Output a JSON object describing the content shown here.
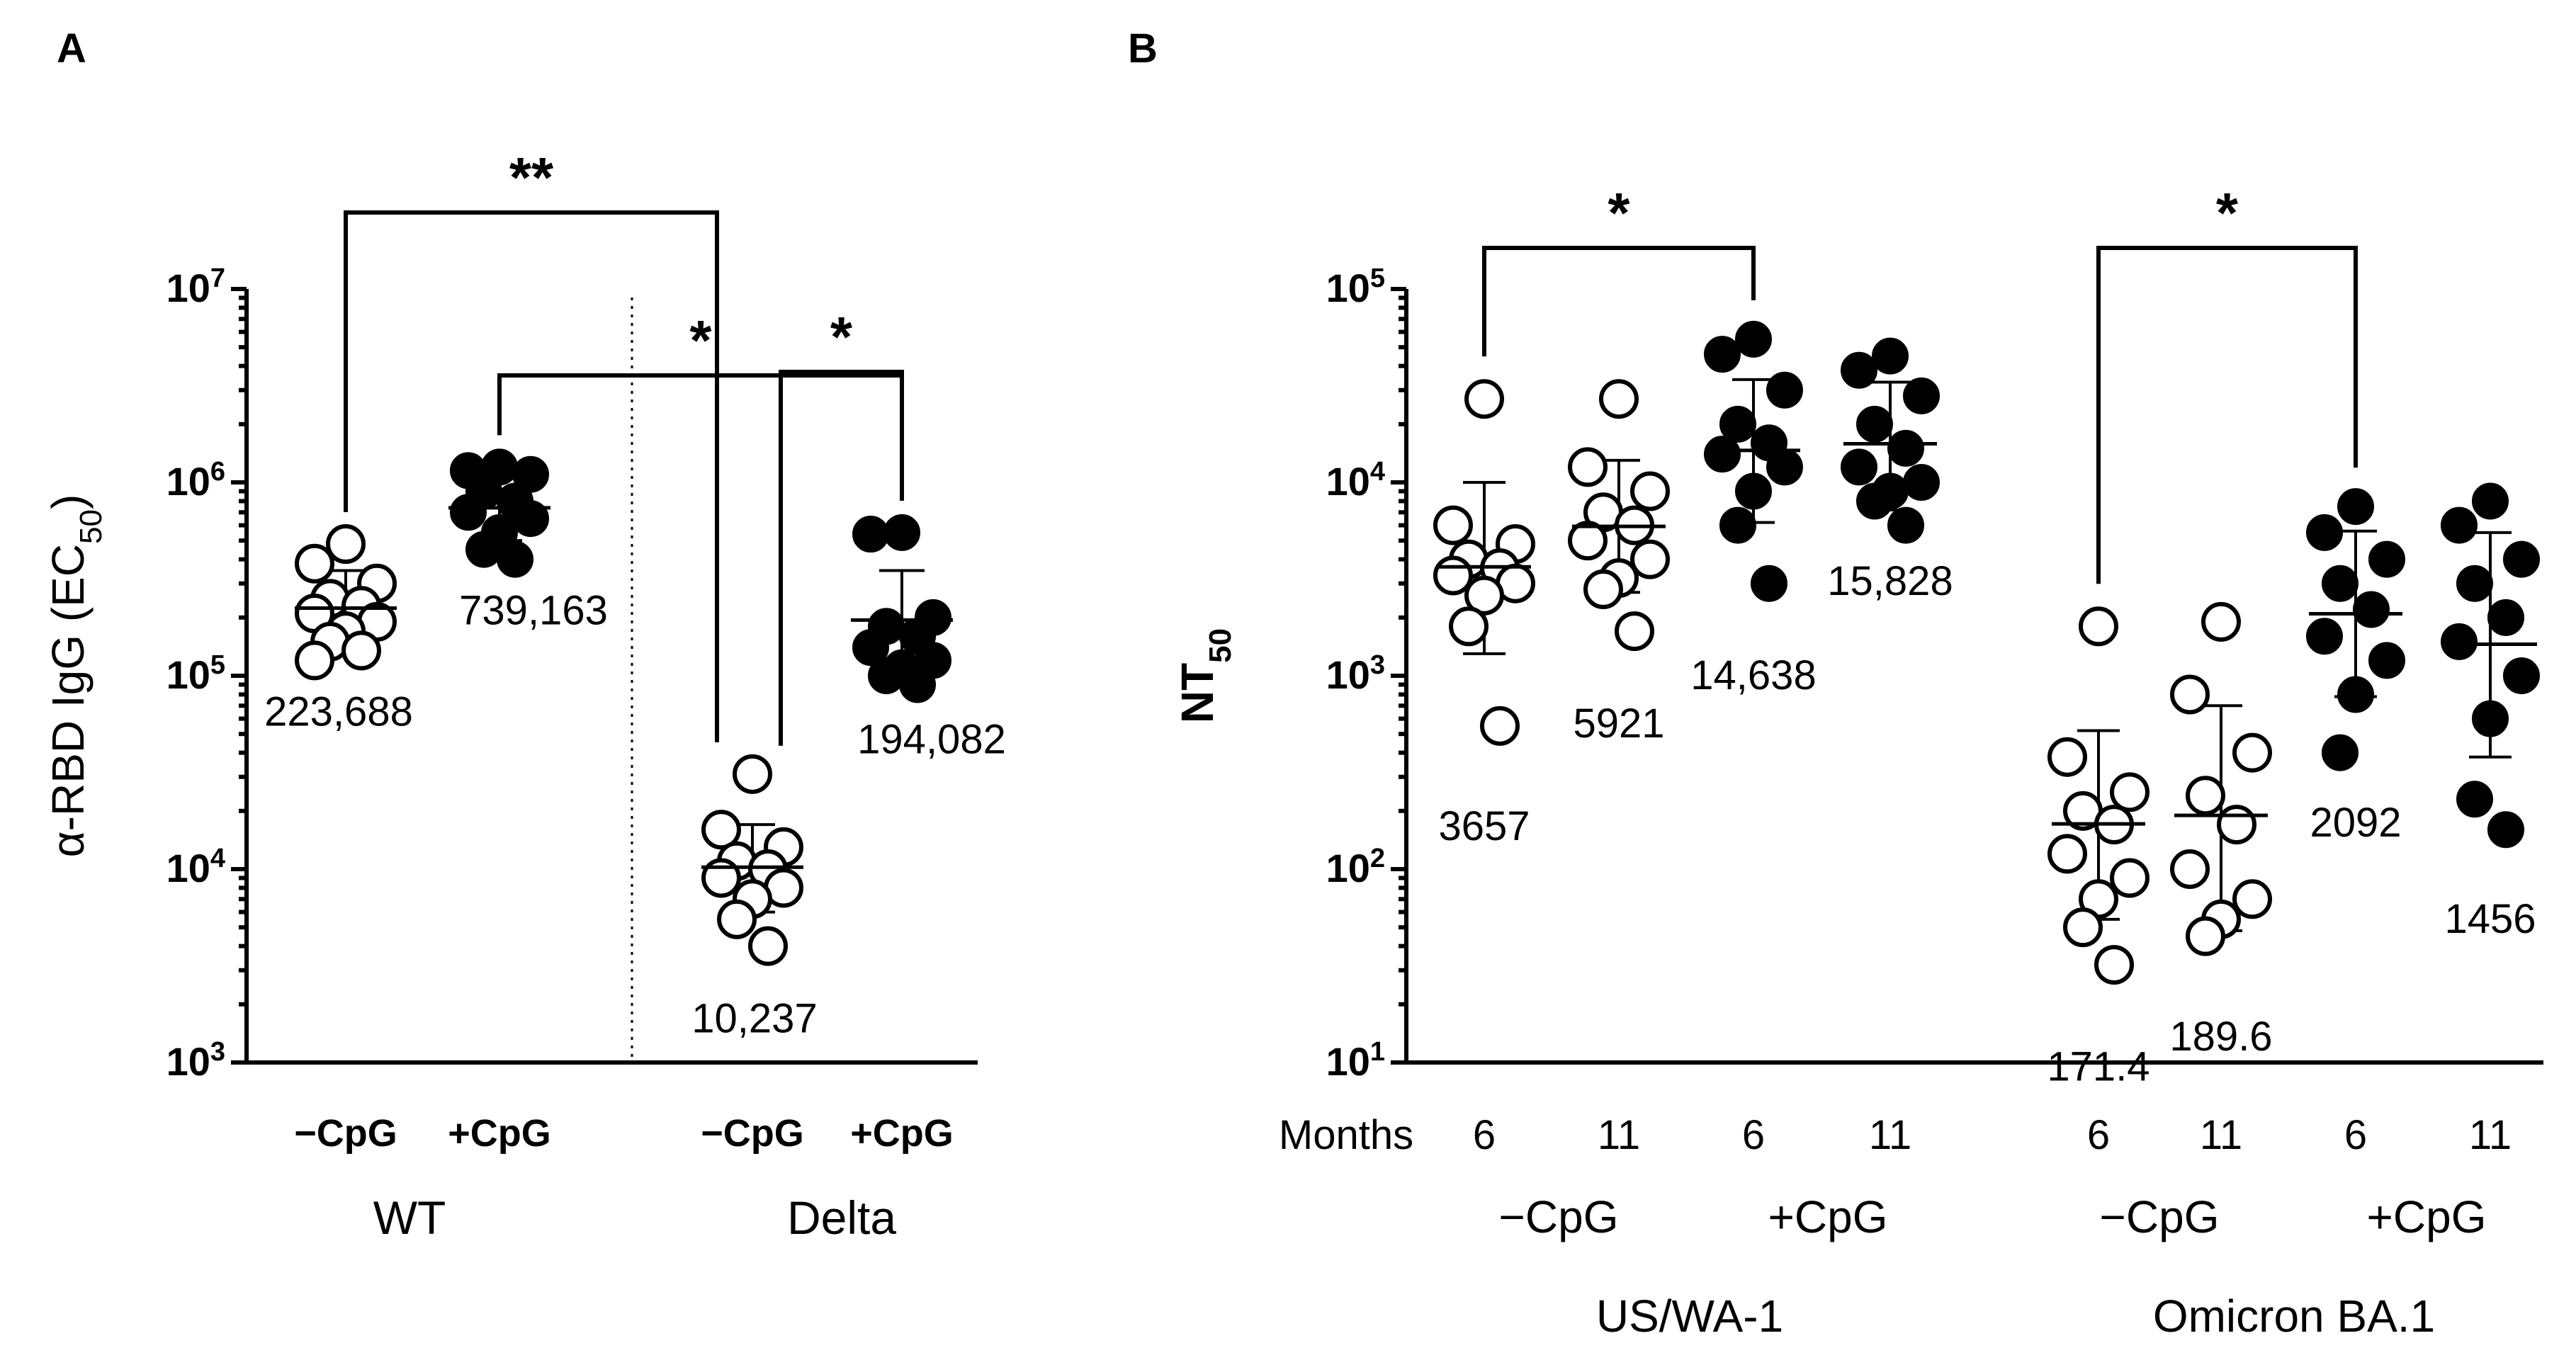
{
  "chart_data": [
    {
      "panel": "A",
      "type": "scatter",
      "yscale": "log",
      "ylabel_prefix": "α-RBD IgG (EC",
      "ylabel_sub": "50",
      "ylabel_suffix": ")",
      "ylim": [
        1000,
        10000000
      ],
      "yticks": [
        {
          "base": "10",
          "exp": "3",
          "value": 1000
        },
        {
          "base": "10",
          "exp": "4",
          "value": 10000
        },
        {
          "base": "10",
          "exp": "5",
          "value": 100000
        },
        {
          "base": "10",
          "exp": "6",
          "value": 1000000
        },
        {
          "base": "10",
          "exp": "7",
          "value": 10000000
        }
      ],
      "divider": true,
      "group_labels": [
        "WT",
        "Delta"
      ],
      "groups": [
        {
          "id": "wt-minus",
          "label": "−CpG",
          "variant": "WT",
          "filled": false,
          "mean": 223688,
          "mean_label": "223,688",
          "sd_high": 350000,
          "sd_low": 145000,
          "values": [
            480000,
            380000,
            300000,
            250000,
            230000,
            210000,
            190000,
            170000,
            150000,
            135000,
            120000
          ]
        },
        {
          "id": "wt-plus",
          "label": "+CpG",
          "variant": "WT",
          "filled": true,
          "mean": 739163,
          "mean_label": "739,163",
          "sd_high": 1100000,
          "sd_low": 500000,
          "values": [
            1200000,
            1150000,
            1100000,
            900000,
            800000,
            700000,
            650000,
            550000,
            450000,
            400000
          ]
        },
        {
          "id": "delta-minus",
          "label": "−CpG",
          "variant": "Delta",
          "filled": false,
          "mean": 10237,
          "mean_label": "10,237",
          "sd_high": 17000,
          "sd_low": 6000,
          "values": [
            31000,
            16000,
            13000,
            11000,
            10000,
            9000,
            8000,
            7000,
            5500,
            4000
          ]
        },
        {
          "id": "delta-plus",
          "label": "+CpG",
          "variant": "Delta",
          "filled": true,
          "mean": 194082,
          "mean_label": "194,082",
          "sd_high": 350000,
          "sd_low": 110000,
          "values": [
            550000,
            540000,
            200000,
            180000,
            160000,
            140000,
            120000,
            110000,
            100000,
            90000
          ]
        }
      ],
      "significance": [
        {
          "from": "wt-plus",
          "to": "delta-plus",
          "label": "*",
          "level": 3
        },
        {
          "from": "wt-minus",
          "to": "delta-minus",
          "label": "**",
          "level": 2
        },
        {
          "from": "delta-minus",
          "to": "delta-plus",
          "label": "*",
          "level": 1
        }
      ]
    },
    {
      "panel": "B",
      "type": "scatter",
      "yscale": "log",
      "ylabel_prefix": "NT",
      "ylabel_sub": "50",
      "ylim": [
        10,
        100000
      ],
      "yticks": [
        {
          "base": "10",
          "exp": "1",
          "value": 10
        },
        {
          "base": "10",
          "exp": "2",
          "value": 100
        },
        {
          "base": "10",
          "exp": "3",
          "value": 1000
        },
        {
          "base": "10",
          "exp": "4",
          "value": 10000
        },
        {
          "base": "10",
          "exp": "5",
          "value": 100000
        }
      ],
      "months_label": "Months",
      "treatment_labels": [
        "−CpG",
        "+CpG",
        "−CpG",
        "+CpG"
      ],
      "variant_labels": [
        "US/WA-1",
        "Omicron BA.1"
      ],
      "groups": [
        {
          "id": "wa-minus-6",
          "month": "6",
          "filled": false,
          "mean": 3657,
          "mean_label": "3657",
          "sd_high": 10000,
          "sd_low": 1300,
          "values": [
            27000,
            6000,
            4800,
            4000,
            3600,
            3300,
            3000,
            2600,
            1800,
            550
          ]
        },
        {
          "id": "wa-minus-11",
          "month": "11",
          "filled": false,
          "mean": 5921,
          "mean_label": "5921",
          "sd_high": 13000,
          "sd_low": 2700,
          "values": [
            27000,
            12000,
            9000,
            7000,
            6000,
            5000,
            4000,
            3200,
            2800,
            1700
          ]
        },
        {
          "id": "wa-plus-6",
          "month": "6",
          "filled": true,
          "mean": 14638,
          "mean_label": "14,638",
          "sd_high": 34000,
          "sd_low": 6200,
          "values": [
            55000,
            46000,
            30000,
            20000,
            16000,
            14000,
            12000,
            9000,
            6000,
            3000
          ]
        },
        {
          "id": "wa-plus-11",
          "month": "11",
          "filled": true,
          "mean": 15828,
          "mean_label": "15,828",
          "sd_high": 33000,
          "sd_low": 7200,
          "values": [
            45000,
            38000,
            28000,
            20000,
            15000,
            12000,
            10000,
            9000,
            8000,
            6000
          ]
        },
        {
          "id": "om-minus-6",
          "month": "6",
          "filled": false,
          "mean": 171.4,
          "mean_label": "171.4",
          "sd_high": 520,
          "sd_low": 55,
          "values": [
            1800,
            380,
            250,
            200,
            170,
            120,
            90,
            70,
            50,
            32
          ]
        },
        {
          "id": "om-minus-11",
          "month": "11",
          "filled": false,
          "mean": 189.6,
          "mean_label": "189.6",
          "sd_high": 700,
          "sd_low": 48,
          "values": [
            1900,
            800,
            400,
            240,
            170,
            100,
            70,
            55,
            45
          ]
        },
        {
          "id": "om-plus-6",
          "month": "6",
          "filled": true,
          "mean": 2092,
          "mean_label": "2092",
          "sd_high": 5600,
          "sd_low": 780,
          "values": [
            7500,
            5500,
            4000,
            3000,
            2200,
            1600,
            1200,
            800,
            400
          ]
        },
        {
          "id": "om-plus-11",
          "month": "11",
          "filled": true,
          "mean": 1456,
          "mean_label": "1456",
          "sd_high": 5500,
          "sd_low": 380,
          "values": [
            8000,
            6000,
            4000,
            3000,
            2000,
            1500,
            1000,
            600,
            230,
            160
          ]
        }
      ],
      "significance": [
        {
          "from": "wa-minus-6",
          "to": "wa-plus-6",
          "label": "*"
        },
        {
          "from": "om-minus-6",
          "to": "om-plus-6",
          "label": "*"
        }
      ]
    }
  ]
}
